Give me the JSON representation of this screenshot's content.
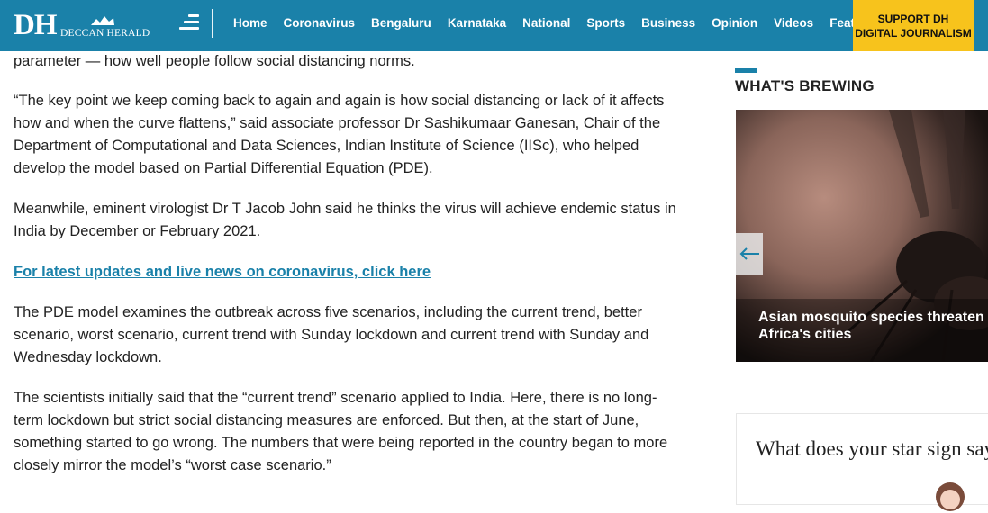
{
  "header": {
    "logo_initials": "DH",
    "logo_name": "DECCAN HERALD",
    "nav": [
      "Home",
      "Coronavirus",
      "Bengaluru",
      "Karnataka",
      "National",
      "Sports",
      "Business",
      "Opinion",
      "Videos",
      "Features"
    ],
    "support_line1": "SUPPORT DH",
    "support_line2": "DIGITAL JOURNALISM"
  },
  "article": {
    "p0": "parameter — how well people follow social distancing norms.",
    "p1": "“The key point we keep coming back to again and again is how social distancing or lack of it affects how and when the curve flattens,” said associate professor Dr Sashikumaar Ganesan, Chair of the Department of Computational and Data Sciences, Indian Institute of Science (IISc), who helped develop the model based on Partial Differential Equation (PDE).",
    "p2": "Meanwhile, eminent virologist Dr T Jacob John said he thinks the virus will achieve endemic status in India by December or February 2021.",
    "link": "For latest updates and live news on coronavirus, click here",
    "p3": "The PDE model examines the outbreak across five scenarios, including the current trend, better scenario, worst scenario, current trend with Sunday lockdown and current trend with Sunday and Wednesday lockdown.",
    "p4": "The scientists initially said that the “current trend” scenario applied to India. Here, there is no long-term lockdown but strict social distancing measures are enforced. But then, at the start of June, something started to go wrong. The numbers that were being reported in the country began to more closely mirror the model’s “worst case scenario.”"
  },
  "sidebar": {
    "title": "WHAT'S BREWING",
    "feature_caption": "Asian mosquito species threaten Africa's cities",
    "star_title": "What does your star sign say?"
  },
  "colors": {
    "brand_blue": "#1a81a9",
    "support_yellow": "#f7c31c"
  },
  "icons": [
    "menu-icon",
    "arrow-left-icon",
    "logo-mark-icon"
  ]
}
